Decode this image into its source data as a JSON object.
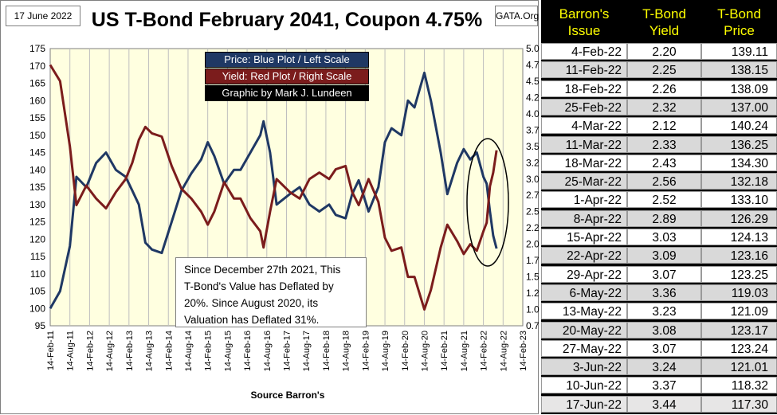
{
  "header": {
    "date": "17 June 2022",
    "source_tag": "GATA.Org",
    "title": "US T-Bond February 2041, Coupon 4.75%"
  },
  "legend": {
    "price": "Price:  Blue Plot / Left Scale",
    "yield": "Yield:  Red Plot / Right Scale",
    "credit": "Graphic by Mark J. Lundeen"
  },
  "note": {
    "line1": "Since December 27th 2021, This",
    "line2": "T-Bond's Value has Deflated by",
    "line3": "20%.  Since August 2020, its",
    "line4": "Valuation has Deflated 31%."
  },
  "colors": {
    "plot_bg": "#ffffe0",
    "price_line": "#1f3864",
    "yield_line": "#7b1c1c",
    "table_header": "#ffff00"
  },
  "chart_data": {
    "type": "line",
    "xlabel": "Source Barron's",
    "x_ticks": [
      "14-Feb-11",
      "14-Aug-11",
      "14-Feb-12",
      "14-Aug-12",
      "14-Feb-13",
      "14-Aug-13",
      "14-Feb-14",
      "14-Aug-14",
      "14-Feb-15",
      "14-Aug-15",
      "14-Feb-16",
      "14-Aug-16",
      "14-Feb-17",
      "14-Aug-17",
      "14-Feb-18",
      "14-Aug-18",
      "14-Feb-19",
      "14-Aug-19",
      "14-Feb-20",
      "14-Aug-20",
      "14-Feb-21",
      "14-Aug-21",
      "14-Feb-22",
      "14-Aug-22",
      "14-Feb-23"
    ],
    "left_axis": {
      "min": 95,
      "max": 175,
      "step": 5,
      "ticks": [
        "95",
        "100",
        "105",
        "110",
        "115",
        "120",
        "125",
        "130",
        "135",
        "140",
        "145",
        "150",
        "155",
        "160",
        "165",
        "170",
        "175"
      ]
    },
    "right_axis": {
      "min": 0.75,
      "max": 5.0,
      "step": 0.25,
      "ticks": [
        "0.75",
        "1.00",
        "1.25",
        "1.50",
        "1.75",
        "2.00",
        "2.25",
        "2.50",
        "2.75",
        "3.00",
        "3.25",
        "3.50",
        "3.75",
        "4.00",
        "4.25",
        "4.50",
        "4.75",
        "5.00"
      ]
    },
    "grid": "vertical",
    "legend_position": "top-center",
    "series": [
      {
        "name": "Price",
        "axis": "left",
        "x": [
          "2011-02",
          "2011-05",
          "2011-08",
          "2011-10",
          "2012-01",
          "2012-04",
          "2012-07",
          "2012-10",
          "2013-01",
          "2013-03",
          "2013-05",
          "2013-07",
          "2013-09",
          "2013-12",
          "2014-03",
          "2014-06",
          "2014-09",
          "2014-12",
          "2015-02",
          "2015-04",
          "2015-07",
          "2015-10",
          "2015-12",
          "2016-03",
          "2016-06",
          "2016-07",
          "2016-09",
          "2016-11",
          "2017-03",
          "2017-06",
          "2017-09",
          "2017-12",
          "2018-03",
          "2018-05",
          "2018-08",
          "2018-10",
          "2018-12",
          "2019-03",
          "2019-06",
          "2019-08",
          "2019-10",
          "2020-01",
          "2020-03",
          "2020-05",
          "2020-08",
          "2020-10",
          "2021-01",
          "2021-03",
          "2021-06",
          "2021-08",
          "2021-10",
          "2021-12",
          "2022-02",
          "2022-03",
          "2022-04",
          "2022-05",
          "2022-06"
        ],
        "values": [
          100,
          105,
          118,
          138,
          135,
          142,
          145,
          140,
          138,
          134,
          130,
          119,
          117,
          116,
          125,
          134,
          139,
          143,
          148,
          144,
          136,
          140,
          140,
          145,
          150,
          154,
          145,
          130,
          133,
          135,
          130,
          128,
          130,
          127,
          126,
          133,
          137,
          128,
          135,
          148,
          152,
          150,
          160,
          158,
          168,
          160,
          145,
          133,
          142,
          146,
          143,
          145,
          138,
          136,
          128,
          121,
          117.3
        ]
      },
      {
        "name": "Yield",
        "axis": "right",
        "x": [
          "2011-02",
          "2011-05",
          "2011-08",
          "2011-10",
          "2012-01",
          "2012-04",
          "2012-07",
          "2012-10",
          "2013-01",
          "2013-03",
          "2013-05",
          "2013-07",
          "2013-09",
          "2013-12",
          "2014-03",
          "2014-06",
          "2014-09",
          "2014-12",
          "2015-02",
          "2015-04",
          "2015-07",
          "2015-10",
          "2015-12",
          "2016-03",
          "2016-06",
          "2016-07",
          "2016-09",
          "2016-11",
          "2017-03",
          "2017-06",
          "2017-09",
          "2017-12",
          "2018-03",
          "2018-05",
          "2018-08",
          "2018-10",
          "2018-12",
          "2019-03",
          "2019-06",
          "2019-08",
          "2019-10",
          "2020-01",
          "2020-03",
          "2020-05",
          "2020-08",
          "2020-10",
          "2021-01",
          "2021-03",
          "2021-06",
          "2021-08",
          "2021-10",
          "2021-12",
          "2022-02",
          "2022-03",
          "2022-04",
          "2022-05",
          "2022-06"
        ],
        "values": [
          4.75,
          4.5,
          3.5,
          2.6,
          2.9,
          2.7,
          2.55,
          2.8,
          3.0,
          3.25,
          3.6,
          3.8,
          3.7,
          3.65,
          3.2,
          2.85,
          2.7,
          2.5,
          2.3,
          2.5,
          2.95,
          2.7,
          2.7,
          2.4,
          2.2,
          1.95,
          2.5,
          3.0,
          2.8,
          2.7,
          3.0,
          3.1,
          3.0,
          3.15,
          3.2,
          2.8,
          2.6,
          3.0,
          2.65,
          2.1,
          1.9,
          1.95,
          1.5,
          1.5,
          1.0,
          1.3,
          1.95,
          2.3,
          2.05,
          1.85,
          2.0,
          1.9,
          2.2,
          2.33,
          2.89,
          3.1,
          3.44
        ]
      }
    ]
  },
  "table": {
    "headers": {
      "issue": "Barron's Issue",
      "yield": "T-Bond Yield",
      "price": "T-Bond Price"
    },
    "rows": [
      {
        "issue": "4-Feb-22",
        "yield": "2.20",
        "price": "139.11"
      },
      {
        "issue": "11-Feb-22",
        "yield": "2.25",
        "price": "138.15"
      },
      {
        "issue": "18-Feb-22",
        "yield": "2.26",
        "price": "138.09"
      },
      {
        "issue": "25-Feb-22",
        "yield": "2.32",
        "price": "137.00"
      },
      {
        "issue": "4-Mar-22",
        "yield": "2.12",
        "price": "140.24"
      },
      {
        "issue": "11-Mar-22",
        "yield": "2.33",
        "price": "136.25"
      },
      {
        "issue": "18-Mar-22",
        "yield": "2.43",
        "price": "134.30"
      },
      {
        "issue": "25-Mar-22",
        "yield": "2.56",
        "price": "132.18"
      },
      {
        "issue": "1-Apr-22",
        "yield": "2.52",
        "price": "133.10"
      },
      {
        "issue": "8-Apr-22",
        "yield": "2.89",
        "price": "126.29"
      },
      {
        "issue": "15-Apr-22",
        "yield": "3.03",
        "price": "124.13"
      },
      {
        "issue": "22-Apr-22",
        "yield": "3.09",
        "price": "123.16"
      },
      {
        "issue": "29-Apr-22",
        "yield": "3.07",
        "price": "123.25"
      },
      {
        "issue": "6-May-22",
        "yield": "3.36",
        "price": "119.03"
      },
      {
        "issue": "13-May-22",
        "yield": "3.23",
        "price": "121.09"
      },
      {
        "issue": "20-May-22",
        "yield": "3.08",
        "price": "123.17"
      },
      {
        "issue": "27-May-22",
        "yield": "3.07",
        "price": "123.24"
      },
      {
        "issue": "3-Jun-22",
        "yield": "3.24",
        "price": "121.01"
      },
      {
        "issue": "10-Jun-22",
        "yield": "3.37",
        "price": "118.32"
      },
      {
        "issue": "17-Jun-22",
        "yield": "3.44",
        "price": "117.30"
      }
    ]
  }
}
